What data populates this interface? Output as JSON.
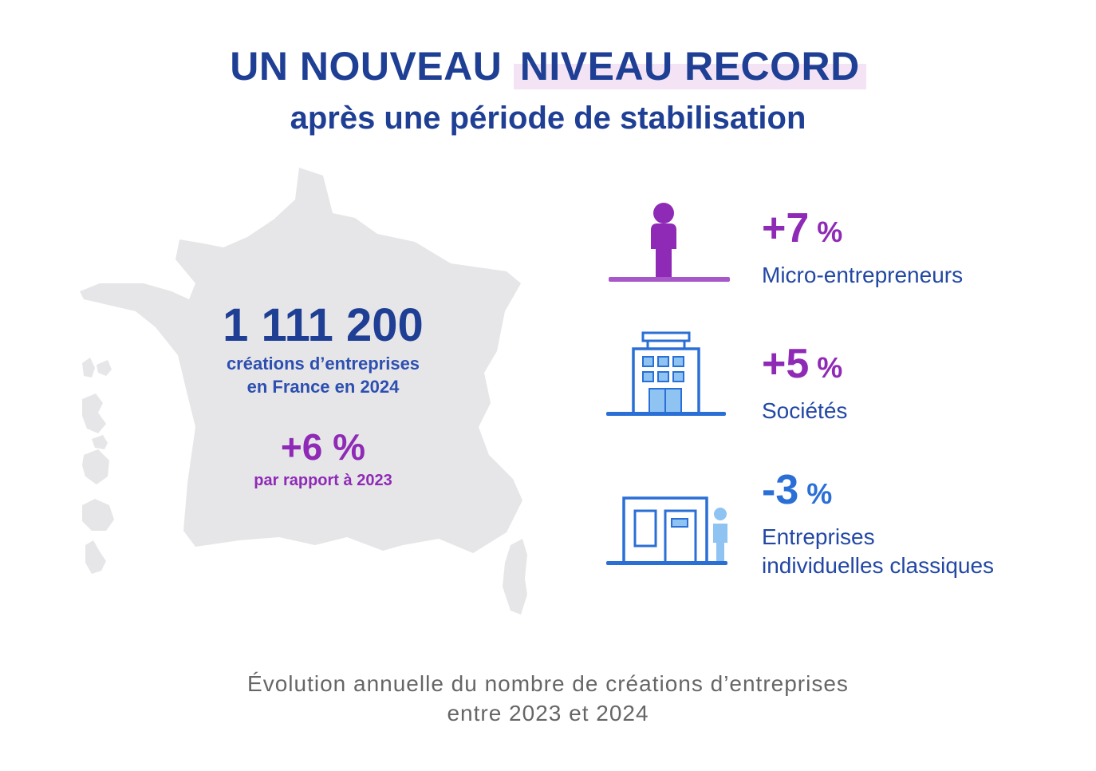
{
  "header": {
    "title_part1": "UN NOUVEAU",
    "title_part2": "NIVEAU RECORD",
    "subtitle": "après une période de stabilisation"
  },
  "main": {
    "total_value": "1 111 200",
    "total_caption_line1": "créations d’entreprises",
    "total_caption_line2": "en France en 2024",
    "evolution_value": "+6 %",
    "evolution_caption": "par rapport à 2023"
  },
  "stats": [
    {
      "value": "+7",
      "unit": "%",
      "label_lines": [
        "Micro-entrepreneurs"
      ],
      "icon": "person-icon"
    },
    {
      "value": "+5",
      "unit": "%",
      "label_lines": [
        "Sociétés"
      ],
      "icon": "building-icon"
    },
    {
      "value": "-3",
      "unit": "%",
      "label_lines": [
        "Entreprises",
        "individuelles classiques"
      ],
      "icon": "shop-icon"
    }
  ],
  "footer": {
    "line1": "Évolution annuelle du nombre de créations d’entreprises",
    "line2": "entre 2023 et 2024"
  },
  "colors": {
    "navy": "#1f3f95",
    "purple": "#8f2ab6",
    "blue": "#2a6fd6",
    "light_blue": "#8fc3f2",
    "map_gray": "#e6e6e8",
    "highlight": "#f3e3f5"
  }
}
